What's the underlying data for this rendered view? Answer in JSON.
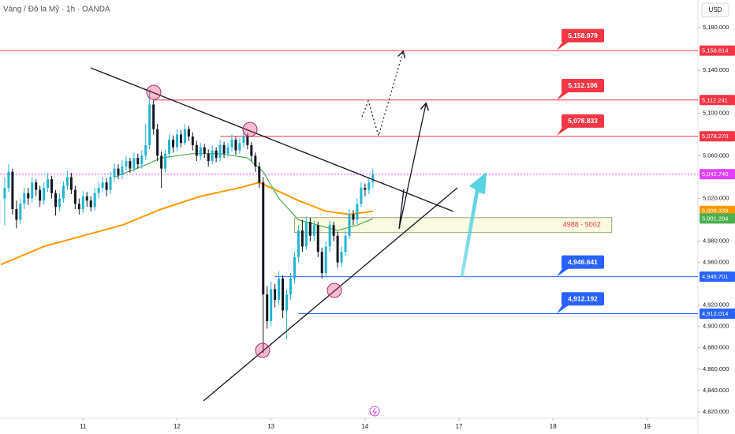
{
  "chart_data": {
    "type": "candlestick",
    "title": "Vàng / Đô la Mỹ · 1h · OANDA",
    "currency": "USD",
    "xlim": [
      -21.2,
      157
    ],
    "ylim": [
      4814,
      5206
    ],
    "xticks": [
      {
        "value": 0,
        "label": "11"
      },
      {
        "value": 24,
        "label": "12"
      },
      {
        "value": 48,
        "label": "13"
      },
      {
        "value": 72,
        "label": "14"
      },
      {
        "value": 96,
        "label": "17"
      },
      {
        "value": 120,
        "label": "18"
      },
      {
        "value": 144,
        "label": "19"
      }
    ],
    "yticks": [
      {
        "value": 5180,
        "label": "5,180.000"
      },
      {
        "value": 5140,
        "label": "5,140.000"
      },
      {
        "value": 5100,
        "label": "5,100.000"
      },
      {
        "value": 5060,
        "label": "5,060.000"
      },
      {
        "value": 5020,
        "label": "5,020.000"
      },
      {
        "value": 4980,
        "label": "4,980.000"
      },
      {
        "value": 4960,
        "label": "4,960.000"
      },
      {
        "value": 4920,
        "label": "4,920.000"
      },
      {
        "value": 4900,
        "label": "4,900.000"
      },
      {
        "value": 4880,
        "label": "4,880.000"
      },
      {
        "value": 4860,
        "label": "4,860.000"
      },
      {
        "value": 4840,
        "label": "4,840.000"
      },
      {
        "value": 4820,
        "label": "4,820.000"
      }
    ],
    "up_color": "#22b5d3",
    "down_color": "#131722",
    "candles": {
      "x": [
        -20,
        -19,
        -18,
        -17,
        -16,
        -15,
        -14,
        -13,
        -12,
        -11,
        -10,
        -9,
        -8,
        -7,
        -6,
        -5,
        -4,
        -3,
        -2,
        -1,
        0,
        1,
        2,
        3,
        4,
        5,
        6,
        7,
        8,
        9,
        10,
        11,
        12,
        13,
        14,
        15,
        16,
        17,
        18,
        19,
        20,
        21,
        22,
        23,
        24,
        25,
        26,
        27,
        28,
        29,
        30,
        31,
        32,
        33,
        34,
        35,
        36,
        37,
        38,
        39,
        40,
        41,
        42,
        43,
        44,
        45,
        46,
        47,
        48,
        49,
        50,
        51,
        52,
        53,
        54,
        55,
        56,
        57,
        58,
        59,
        60,
        61,
        62,
        63,
        64,
        65,
        66,
        67,
        68,
        69,
        70,
        71,
        72,
        73,
        74
      ],
      "ohlc": [
        [
          5020,
          5040,
          4995,
          5030
        ],
        [
          5030,
          5052,
          5026,
          5045
        ],
        [
          5045,
          5048,
          5005,
          5010
        ],
        [
          5010,
          5018,
          4992,
          5000
        ],
        [
          5000,
          5020,
          4996,
          5015
        ],
        [
          5015,
          5030,
          5010,
          5025
        ],
        [
          5025,
          5030,
          5014,
          5020
        ],
        [
          5020,
          5040,
          5016,
          5035
        ],
        [
          5035,
          5038,
          5022,
          5028
        ],
        [
          5028,
          5032,
          5012,
          5018
        ],
        [
          5018,
          5035,
          5014,
          5030
        ],
        [
          5030,
          5044,
          5026,
          5038
        ],
        [
          5038,
          5041,
          5020,
          5025
        ],
        [
          5025,
          5028,
          5004,
          5012
        ],
        [
          5012,
          5025,
          5008,
          5020
        ],
        [
          5020,
          5036,
          5016,
          5032
        ],
        [
          5032,
          5046,
          5028,
          5040
        ],
        [
          5040,
          5044,
          5024,
          5028
        ],
        [
          5028,
          5032,
          5010,
          5015
        ],
        [
          5015,
          5020,
          5005,
          5010
        ],
        [
          5010,
          5027,
          5006,
          5022
        ],
        [
          5022,
          5026,
          5012,
          5018
        ],
        [
          5018,
          5022,
          5008,
          5012
        ],
        [
          5012,
          5030,
          5009,
          5025
        ],
        [
          5025,
          5035,
          5020,
          5030
        ],
        [
          5030,
          5040,
          5026,
          5035
        ],
        [
          5035,
          5039,
          5022,
          5028
        ],
        [
          5028,
          5045,
          5024,
          5040
        ],
        [
          5040,
          5053,
          5036,
          5048
        ],
        [
          5048,
          5052,
          5038,
          5042
        ],
        [
          5042,
          5056,
          5038,
          5050
        ],
        [
          5050,
          5060,
          5046,
          5055
        ],
        [
          5055,
          5058,
          5044,
          5048
        ],
        [
          5048,
          5063,
          5045,
          5058
        ],
        [
          5058,
          5062,
          5048,
          5052
        ],
        [
          5052,
          5065,
          5048,
          5060
        ],
        [
          5060,
          5090,
          5056,
          5070
        ],
        [
          5070,
          5122,
          5066,
          5108
        ],
        [
          5108,
          5112,
          5080,
          5085
        ],
        [
          5085,
          5090,
          5055,
          5060
        ],
        [
          5060,
          5064,
          5030,
          5048
        ],
        [
          5048,
          5066,
          5044,
          5062
        ],
        [
          5062,
          5080,
          5058,
          5075
        ],
        [
          5075,
          5079,
          5063,
          5068
        ],
        [
          5068,
          5085,
          5064,
          5080
        ],
        [
          5080,
          5084,
          5068,
          5072
        ],
        [
          5072,
          5090,
          5070,
          5085
        ],
        [
          5085,
          5088,
          5074,
          5078
        ],
        [
          5078,
          5082,
          5065,
          5070
        ],
        [
          5070,
          5074,
          5055,
          5060
        ],
        [
          5060,
          5072,
          5056,
          5068
        ],
        [
          5068,
          5071,
          5058,
          5062
        ],
        [
          5062,
          5066,
          5050,
          5055
        ],
        [
          5055,
          5070,
          5052,
          5065
        ],
        [
          5065,
          5068,
          5054,
          5058
        ],
        [
          5058,
          5075,
          5055,
          5070
        ],
        [
          5070,
          5073,
          5058,
          5062
        ],
        [
          5062,
          5072,
          5059,
          5068
        ],
        [
          5068,
          5080,
          5064,
          5075
        ],
        [
          5075,
          5078,
          5061,
          5065
        ],
        [
          5065,
          5077,
          5062,
          5072
        ],
        [
          5072,
          5083,
          5068,
          5078
        ],
        [
          5078,
          5081,
          5066,
          5070
        ],
        [
          5070,
          5073,
          5055,
          5060
        ],
        [
          5060,
          5063,
          5045,
          5050
        ],
        [
          5050,
          5054,
          5030,
          5035
        ],
        [
          5035,
          5040,
          4875,
          4930
        ],
        [
          4930,
          4938,
          4898,
          4905
        ],
        [
          4905,
          4942,
          4900,
          4935
        ],
        [
          4935,
          4940,
          4918,
          4925
        ],
        [
          4925,
          4952,
          4920,
          4945
        ],
        [
          4945,
          4948,
          4908,
          4915
        ],
        [
          4915,
          4935,
          4888,
          4930
        ],
        [
          4930,
          4950,
          4925,
          4945
        ],
        [
          4945,
          4970,
          4940,
          4965
        ],
        [
          4965,
          4995,
          4960,
          4990
        ],
        [
          4990,
          5000,
          4970,
          4975
        ],
        [
          4975,
          5003,
          4972,
          4998
        ],
        [
          4998,
          5002,
          4980,
          4985
        ],
        [
          4985,
          4999,
          4980,
          4995
        ],
        [
          4995,
          4998,
          4965,
          4970
        ],
        [
          4970,
          4974,
          4945,
          4950
        ],
        [
          4950,
          4980,
          4946,
          4975
        ],
        [
          4975,
          4999,
          4970,
          4995
        ],
        [
          4995,
          4998,
          4980,
          4985
        ],
        [
          4985,
          4989,
          4955,
          4960
        ],
        [
          4960,
          4975,
          4956,
          4970
        ],
        [
          4970,
          4990,
          4966,
          4985
        ],
        [
          4985,
          5010,
          4982,
          5005
        ],
        [
          5005,
          5009,
          4995,
          5000
        ],
        [
          5000,
          5020,
          4996,
          5015
        ],
        [
          5015,
          5035,
          5012,
          5030
        ],
        [
          5030,
          5034,
          5022,
          5028
        ],
        [
          5028,
          5040,
          5024,
          5035
        ],
        [
          5035,
          5048,
          5030,
          5043
        ]
      ]
    },
    "series": [
      {
        "color": "#ff9800",
        "x": [
          -21,
          -10,
          0,
          10,
          20,
          30,
          40,
          45,
          48,
          55,
          62,
          68,
          74
        ],
        "values": [
          4958,
          4975,
          4985,
          4995,
          5010,
          5022,
          5030,
          5035,
          5030,
          5018,
          5008,
          5005,
          5008
        ]
      },
      {
        "color": "#4caf50",
        "x": [
          8,
          15,
          20,
          28,
          35,
          42,
          46,
          50,
          55,
          60,
          65,
          70,
          74
        ],
        "values": [
          5040,
          5050,
          5058,
          5062,
          5062,
          5058,
          5045,
          5020,
          5000,
          4995,
          4990,
          4995,
          5001
        ]
      }
    ],
    "levels": [
      {
        "value": 5158.614,
        "label": "5,158.614",
        "color": "#f23645",
        "style": "solid",
        "x0": -21.2
      },
      {
        "value": 5112.241,
        "label": "5,112.241",
        "color": "#f23645",
        "style": "solid",
        "x0": 18
      },
      {
        "value": 5078.27,
        "label": "5,078.270",
        "color": "#f23645",
        "style": "solid",
        "x0": 35
      },
      {
        "value": 5042.74,
        "label": "5,042.740",
        "color": "#e040fb",
        "style": "dotted",
        "x0": -21.2
      },
      {
        "value": 5008.339,
        "label": "5,008.339",
        "color": "#ff9800",
        "style": "none"
      },
      {
        "value": 5001.204,
        "label": "5,001.204",
        "color": "#4caf50",
        "style": "none"
      },
      {
        "value": 4946.701,
        "label": "4,946.701",
        "color": "#2962ff",
        "style": "solid",
        "x0": 49
      },
      {
        "value": 4912.014,
        "label": "4,912.014",
        "color": "#2962ff",
        "style": "solid",
        "x0": 55
      }
    ],
    "callouts": [
      {
        "value": 5158.979,
        "label": "5,158.979",
        "color": "#f23645"
      },
      {
        "value": 5112.106,
        "label": "5,112.106",
        "color": "#f23645"
      },
      {
        "value": 5078.833,
        "label": "5,078.833",
        "color": "#f23645"
      },
      {
        "value": 4946.641,
        "label": "4,946.641",
        "color": "#2962ff"
      },
      {
        "value": 4912.192,
        "label": "4,912.192",
        "color": "#2962ff"
      }
    ],
    "zone": {
      "label": "4988 - 5002",
      "low": 4988,
      "high": 5002,
      "x0": 54,
      "x1": 135
    }
  }
}
